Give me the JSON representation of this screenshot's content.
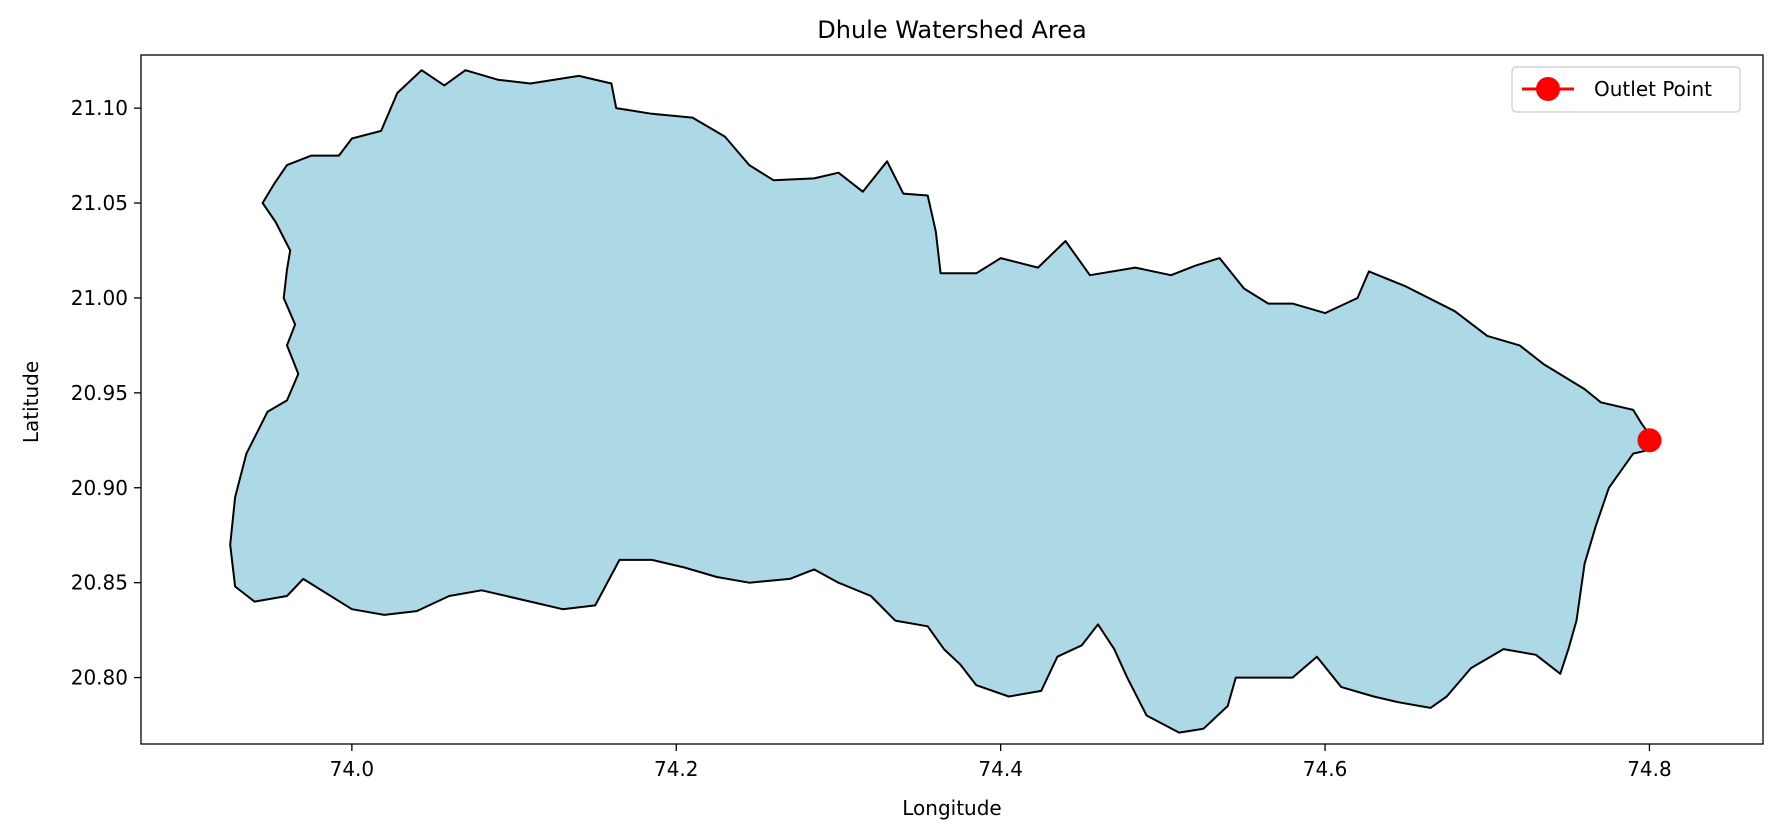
{
  "chart_data": {
    "type": "map",
    "title": "Dhule Watershed Area",
    "xlabel": "Longitude",
    "ylabel": "Latitude",
    "xlim": [
      73.87,
      74.87
    ],
    "ylim": [
      20.765,
      21.128
    ],
    "xticks": [
      74.0,
      74.2,
      74.4,
      74.6,
      74.8
    ],
    "xtick_labels": [
      "74.0",
      "74.2",
      "74.4",
      "74.6",
      "74.8"
    ],
    "yticks": [
      20.8,
      20.85,
      20.9,
      20.95,
      21.0,
      21.05,
      21.1
    ],
    "ytick_labels": [
      "20.80",
      "20.85",
      "20.90",
      "20.95",
      "21.00",
      "21.05",
      "21.10"
    ],
    "grid": false,
    "legend": {
      "position": "top-right",
      "entries": [
        {
          "label": "Outlet Point",
          "color": "#ff0000",
          "marker": "circle"
        }
      ]
    },
    "watershed": {
      "fill": "#add8e6",
      "edge": "#000000",
      "boundary": [
        [
          73.96,
          21.07
        ],
        [
          73.975,
          21.075
        ],
        [
          73.992,
          21.075
        ],
        [
          74.0,
          21.084
        ],
        [
          74.018,
          21.088
        ],
        [
          74.028,
          21.108
        ],
        [
          74.043,
          21.12
        ],
        [
          74.057,
          21.112
        ],
        [
          74.07,
          21.12
        ],
        [
          74.09,
          21.115
        ],
        [
          74.11,
          21.113
        ],
        [
          74.14,
          21.117
        ],
        [
          74.16,
          21.113
        ],
        [
          74.163,
          21.1
        ],
        [
          74.185,
          21.097
        ],
        [
          74.21,
          21.095
        ],
        [
          74.23,
          21.085
        ],
        [
          74.245,
          21.07
        ],
        [
          74.26,
          21.062
        ],
        [
          74.285,
          21.063
        ],
        [
          74.3,
          21.066
        ],
        [
          74.315,
          21.056
        ],
        [
          74.33,
          21.072
        ],
        [
          74.34,
          21.055
        ],
        [
          74.355,
          21.054
        ],
        [
          74.36,
          21.035
        ],
        [
          74.363,
          21.013
        ],
        [
          74.385,
          21.013
        ],
        [
          74.4,
          21.021
        ],
        [
          74.423,
          21.016
        ],
        [
          74.44,
          21.03
        ],
        [
          74.455,
          21.012
        ],
        [
          74.483,
          21.016
        ],
        [
          74.505,
          21.012
        ],
        [
          74.52,
          21.017
        ],
        [
          74.535,
          21.021
        ],
        [
          74.55,
          21.005
        ],
        [
          74.565,
          20.997
        ],
        [
          74.58,
          20.997
        ],
        [
          74.6,
          20.992
        ],
        [
          74.62,
          21.0
        ],
        [
          74.627,
          21.014
        ],
        [
          74.65,
          21.006
        ],
        [
          74.68,
          20.993
        ],
        [
          74.7,
          20.98
        ],
        [
          74.72,
          20.975
        ],
        [
          74.735,
          20.965
        ],
        [
          74.76,
          20.952
        ],
        [
          74.77,
          20.945
        ],
        [
          74.79,
          20.941
        ],
        [
          74.795,
          20.934
        ],
        [
          74.8,
          20.928
        ],
        [
          74.8,
          20.92
        ],
        [
          74.79,
          20.918
        ],
        [
          74.775,
          20.9
        ],
        [
          74.767,
          20.88
        ],
        [
          74.76,
          20.86
        ],
        [
          74.755,
          20.83
        ],
        [
          74.75,
          20.815
        ],
        [
          74.745,
          20.802
        ],
        [
          74.73,
          20.812
        ],
        [
          74.71,
          20.815
        ],
        [
          74.69,
          20.805
        ],
        [
          74.675,
          20.79
        ],
        [
          74.665,
          20.784
        ],
        [
          74.645,
          20.787
        ],
        [
          74.63,
          20.79
        ],
        [
          74.61,
          20.795
        ],
        [
          74.595,
          20.811
        ],
        [
          74.58,
          20.8
        ],
        [
          74.555,
          20.8
        ],
        [
          74.545,
          20.8
        ],
        [
          74.54,
          20.785
        ],
        [
          74.525,
          20.773
        ],
        [
          74.51,
          20.771
        ],
        [
          74.49,
          20.78
        ],
        [
          74.478,
          20.8
        ],
        [
          74.47,
          20.815
        ],
        [
          74.46,
          20.828
        ],
        [
          74.45,
          20.817
        ],
        [
          74.435,
          20.811
        ],
        [
          74.425,
          20.793
        ],
        [
          74.405,
          20.79
        ],
        [
          74.385,
          20.796
        ],
        [
          74.375,
          20.807
        ],
        [
          74.365,
          20.815
        ],
        [
          74.355,
          20.827
        ],
        [
          74.335,
          20.83
        ],
        [
          74.32,
          20.843
        ],
        [
          74.3,
          20.85
        ],
        [
          74.285,
          20.857
        ],
        [
          74.27,
          20.852
        ],
        [
          74.245,
          20.85
        ],
        [
          74.225,
          20.853
        ],
        [
          74.205,
          20.858
        ],
        [
          74.185,
          20.862
        ],
        [
          74.165,
          20.862
        ],
        [
          74.15,
          20.838
        ],
        [
          74.13,
          20.836
        ],
        [
          74.11,
          20.84
        ],
        [
          74.08,
          20.846
        ],
        [
          74.06,
          20.843
        ],
        [
          74.04,
          20.835
        ],
        [
          74.02,
          20.833
        ],
        [
          74.0,
          20.836
        ],
        [
          73.97,
          20.852
        ],
        [
          73.96,
          20.843
        ],
        [
          73.94,
          20.84
        ],
        [
          73.928,
          20.848
        ],
        [
          73.925,
          20.87
        ],
        [
          73.928,
          20.895
        ],
        [
          73.935,
          20.918
        ],
        [
          73.948,
          20.94
        ],
        [
          73.96,
          20.946
        ],
        [
          73.967,
          20.96
        ],
        [
          73.96,
          20.975
        ],
        [
          73.965,
          20.986
        ],
        [
          73.958,
          21.0
        ],
        [
          73.96,
          21.015
        ],
        [
          73.962,
          21.025
        ],
        [
          73.953,
          21.04
        ],
        [
          73.945,
          21.05
        ],
        [
          73.952,
          21.06
        ]
      ]
    },
    "outlet": {
      "label": "Outlet Point",
      "lon": 74.8,
      "lat": 20.925,
      "color": "#ff0000"
    }
  }
}
